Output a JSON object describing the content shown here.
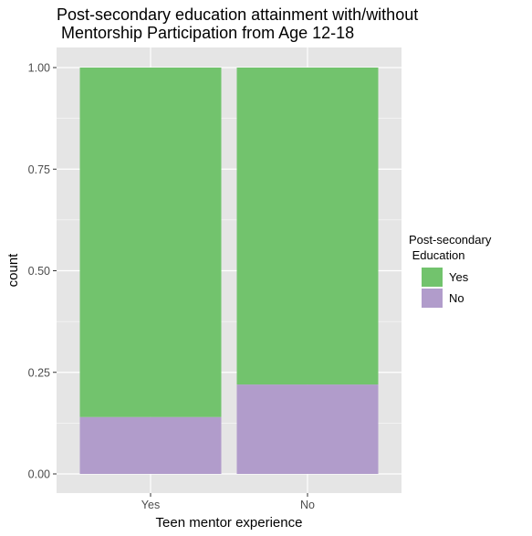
{
  "chart_data": {
    "type": "bar",
    "stacked": true,
    "position": "fill",
    "title": "Post-secondary education attainment with/without\n Mentorship Participation from Age 12-18",
    "xlabel": "Teen mentor experience",
    "ylabel": "count",
    "categories": [
      "Yes",
      "No"
    ],
    "ylim": [
      0,
      1
    ],
    "yticks": [
      "0.00",
      "0.25",
      "0.50",
      "0.75",
      "1.00"
    ],
    "grid": true,
    "legend": {
      "title": "Post-secondary\n Education",
      "placement": "right",
      "entries": [
        "Yes",
        "No"
      ]
    },
    "series": [
      {
        "name": "No",
        "color": "#b19ccb",
        "values": [
          0.14,
          0.22
        ]
      },
      {
        "name": "Yes",
        "color": "#72c36d",
        "values": [
          0.86,
          0.78
        ]
      }
    ],
    "panel_background": "#e5e5e5",
    "gridline_color": "#ffffff"
  }
}
